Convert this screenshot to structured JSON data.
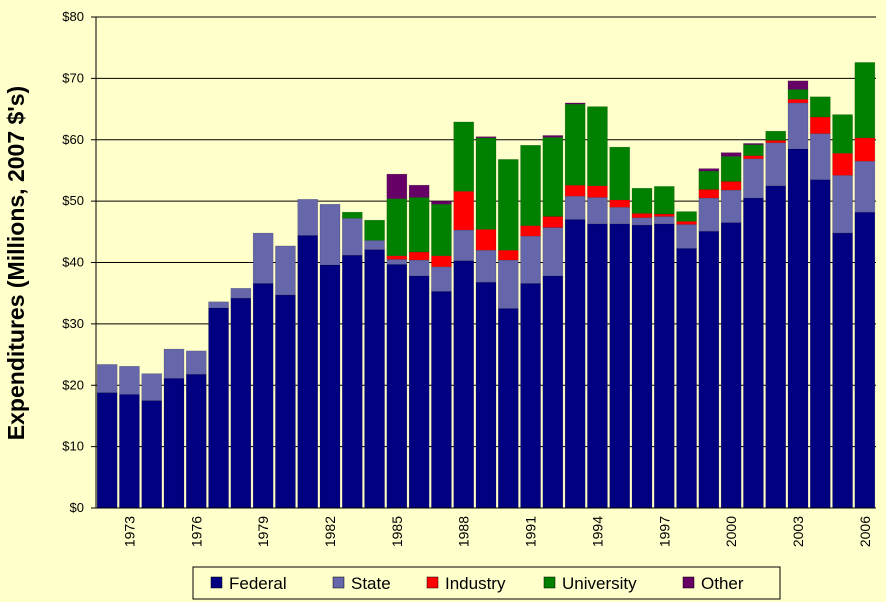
{
  "chart_data": {
    "type": "bar",
    "stacked": true,
    "ylabel": "Expenditures (Millions, 2007 $'s)",
    "ylim": [
      0,
      80
    ],
    "y_ticks": [
      0,
      10,
      20,
      30,
      40,
      50,
      60,
      70,
      80
    ],
    "y_tick_labels": [
      "$0",
      "$10",
      "$20",
      "$30",
      "$40",
      "$50",
      "$60",
      "$70",
      "$80"
    ],
    "categories": [
      1972,
      1973,
      1974,
      1975,
      1976,
      1977,
      1978,
      1979,
      1980,
      1981,
      1982,
      1983,
      1984,
      1985,
      1986,
      1987,
      1988,
      1989,
      1990,
      1991,
      1992,
      1993,
      1994,
      1995,
      1996,
      1997,
      1998,
      1999,
      2000,
      2001,
      2002,
      2003,
      2004,
      2005,
      2006
    ],
    "x_tick_labels": [
      "1973",
      "1976",
      "1979",
      "1982",
      "1985",
      "1988",
      "1991",
      "1994",
      "1997",
      "2000",
      "2003",
      "2006"
    ],
    "grid": true,
    "legend_position": "bottom",
    "series": [
      {
        "name": "Federal",
        "color": "#000080",
        "values": [
          18.8,
          18.5,
          17.5,
          21.1,
          21.8,
          32.6,
          34.2,
          36.6,
          34.7,
          44.4,
          39.6,
          41.2,
          42.1,
          39.7,
          37.8,
          35.3,
          40.3,
          36.8,
          32.5,
          36.6,
          37.8,
          47.0,
          46.3,
          46.3,
          46.1,
          46.3,
          42.3,
          45.1,
          46.5,
          50.5,
          52.5,
          58.5,
          53.5,
          44.8,
          48.2
        ]
      },
      {
        "name": "State",
        "color": "#6666AA",
        "values": [
          4.6,
          4.6,
          4.4,
          4.8,
          3.8,
          1.0,
          1.6,
          8.2,
          8.0,
          5.9,
          9.9,
          6.0,
          1.5,
          0.8,
          2.6,
          4.0,
          5.0,
          5.2,
          7.9,
          7.7,
          7.9,
          3.8,
          4.3,
          2.7,
          1.2,
          1.2,
          3.9,
          5.4,
          5.3,
          6.4,
          7.0,
          7.5,
          7.5,
          9.4,
          8.3
        ]
      },
      {
        "name": "Industry",
        "color": "#FF0000",
        "values": [
          0,
          0,
          0,
          0,
          0,
          0,
          0,
          0,
          0,
          0,
          0,
          0,
          0,
          0.6,
          1.3,
          1.8,
          6.3,
          3.4,
          1.6,
          1.7,
          1.8,
          1.8,
          1.9,
          1.2,
          0.7,
          0.4,
          0.5,
          1.4,
          1.4,
          0.5,
          0.4,
          0.6,
          2.7,
          3.6,
          3.8
        ]
      },
      {
        "name": "University",
        "color": "#008000",
        "values": [
          0,
          0,
          0,
          0,
          0,
          0,
          0,
          0,
          0,
          0,
          0,
          1.0,
          3.3,
          9.3,
          8.9,
          8.4,
          11.3,
          14.9,
          14.8,
          13.1,
          12.9,
          13.2,
          12.9,
          8.6,
          4.1,
          4.5,
          1.6,
          3.0,
          4.1,
          1.8,
          1.5,
          1.6,
          3.3,
          6.3,
          12.3
        ]
      },
      {
        "name": "Other",
        "color": "#660066",
        "values": [
          0,
          0,
          0,
          0,
          0,
          0,
          0,
          0,
          0,
          0,
          0,
          0,
          0,
          4.0,
          2.0,
          0.5,
          0,
          0.2,
          0,
          0,
          0.3,
          0.2,
          0,
          0,
          0,
          0,
          0,
          0.4,
          0.6,
          0.2,
          0,
          1.4,
          0,
          0,
          0
        ]
      }
    ]
  }
}
